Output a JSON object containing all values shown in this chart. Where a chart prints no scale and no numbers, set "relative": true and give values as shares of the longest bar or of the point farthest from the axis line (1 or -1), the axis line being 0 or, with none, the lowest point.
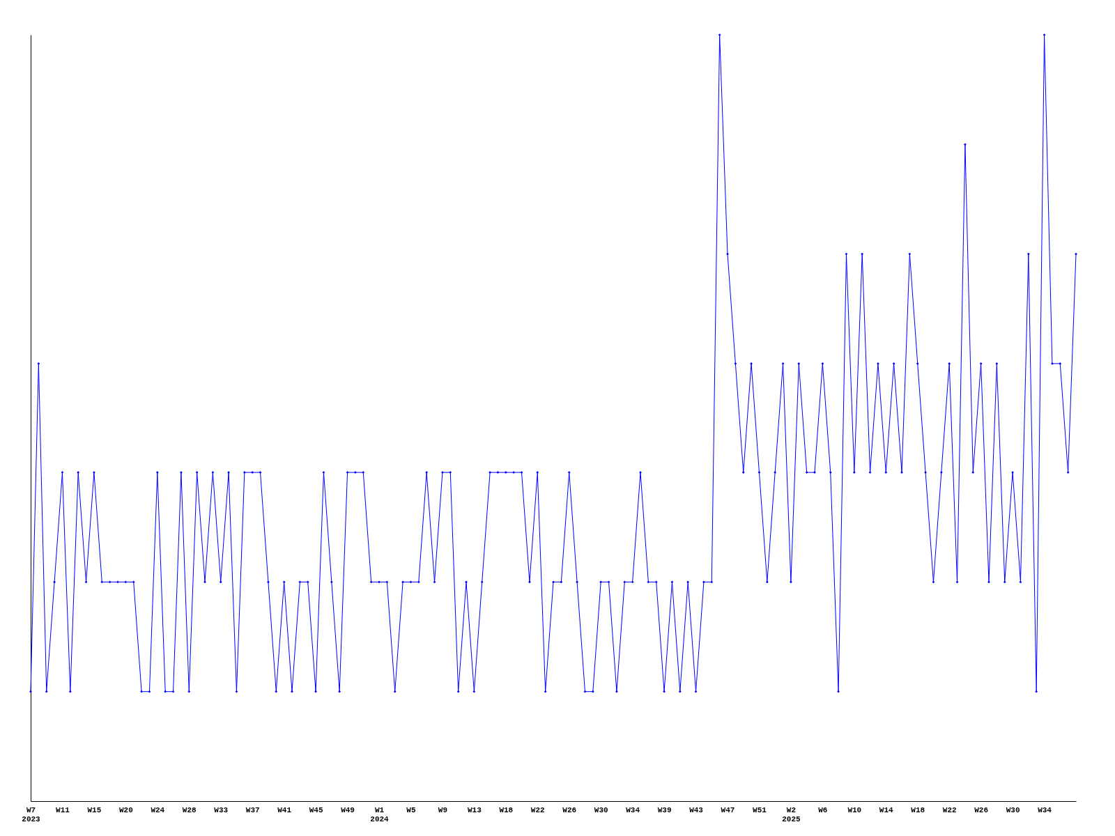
{
  "chart_data": {
    "type": "line",
    "relative": true,
    "marker": "diamond",
    "line_style": "solid",
    "grid": false,
    "categories": [
      "W7\n2023",
      null,
      null,
      null,
      "W11",
      null,
      null,
      null,
      "W15",
      null,
      null,
      null,
      "W20",
      null,
      null,
      null,
      "W24",
      null,
      null,
      null,
      "W28",
      null,
      null,
      null,
      "W33",
      null,
      null,
      null,
      "W37",
      null,
      null,
      null,
      "W41",
      null,
      null,
      null,
      "W45",
      null,
      null,
      null,
      "W49",
      null,
      null,
      null,
      "W1\n2024",
      null,
      null,
      null,
      "W5",
      null,
      null,
      null,
      "W9",
      null,
      null,
      null,
      "W13",
      null,
      null,
      null,
      "W18",
      null,
      null,
      null,
      "W22",
      null,
      null,
      null,
      "W26",
      null,
      null,
      null,
      "W30",
      null,
      null,
      null,
      "W34",
      null,
      null,
      null,
      "W39",
      null,
      null,
      null,
      "W43",
      null,
      null,
      null,
      "W47",
      null,
      null,
      null,
      "W51",
      null,
      null,
      null,
      "W2\n2025",
      null,
      null,
      null,
      "W6",
      null,
      null,
      null,
      "W10",
      null,
      null,
      null,
      "W14",
      null,
      null,
      null,
      "W18",
      null,
      null,
      null,
      "W22",
      null,
      null,
      null,
      "W26",
      null,
      null,
      null,
      "W30",
      null,
      null,
      null,
      "W34",
      null,
      null,
      null,
      null
    ],
    "series": [
      {
        "color": "#0000ff",
        "values": [
          0.143,
          0.571,
          0.143,
          0.286,
          0.429,
          0.143,
          0.429,
          0.286,
          0.429,
          0.286,
          0.286,
          0.286,
          0.286,
          0.286,
          0.143,
          0.143,
          0.429,
          0.143,
          0.143,
          0.429,
          0.143,
          0.429,
          0.286,
          0.429,
          0.286,
          0.429,
          0.143,
          0.429,
          0.429,
          0.429,
          0.286,
          0.143,
          0.286,
          0.143,
          0.286,
          0.286,
          0.143,
          0.429,
          0.286,
          0.143,
          0.429,
          0.429,
          0.429,
          0.286,
          0.286,
          0.286,
          0.143,
          0.286,
          0.286,
          0.286,
          0.429,
          0.286,
          0.429,
          0.429,
          0.143,
          0.286,
          0.143,
          0.286,
          0.429,
          0.429,
          0.429,
          0.429,
          0.429,
          0.286,
          0.429,
          0.143,
          0.286,
          0.286,
          0.429,
          0.286,
          0.143,
          0.143,
          0.286,
          0.286,
          0.143,
          0.286,
          0.286,
          0.429,
          0.286,
          0.286,
          0.143,
          0.286,
          0.143,
          0.286,
          0.143,
          0.286,
          0.286,
          1,
          0.714,
          0.571,
          0.429,
          0.571,
          0.429,
          0.286,
          0.429,
          0.571,
          0.286,
          0.571,
          0.429,
          0.429,
          0.571,
          0.429,
          0.143,
          0.714,
          0.429,
          0.714,
          0.429,
          0.571,
          0.429,
          0.571,
          0.429,
          0.714,
          0.571,
          0.429,
          0.286,
          0.429,
          0.571,
          0.286,
          0.857,
          0.429,
          0.571,
          0.286,
          0.571,
          0.286,
          0.429,
          0.286,
          0.714,
          0.143,
          1,
          0.571,
          0.571,
          0.429,
          0.714
        ]
      }
    ]
  }
}
